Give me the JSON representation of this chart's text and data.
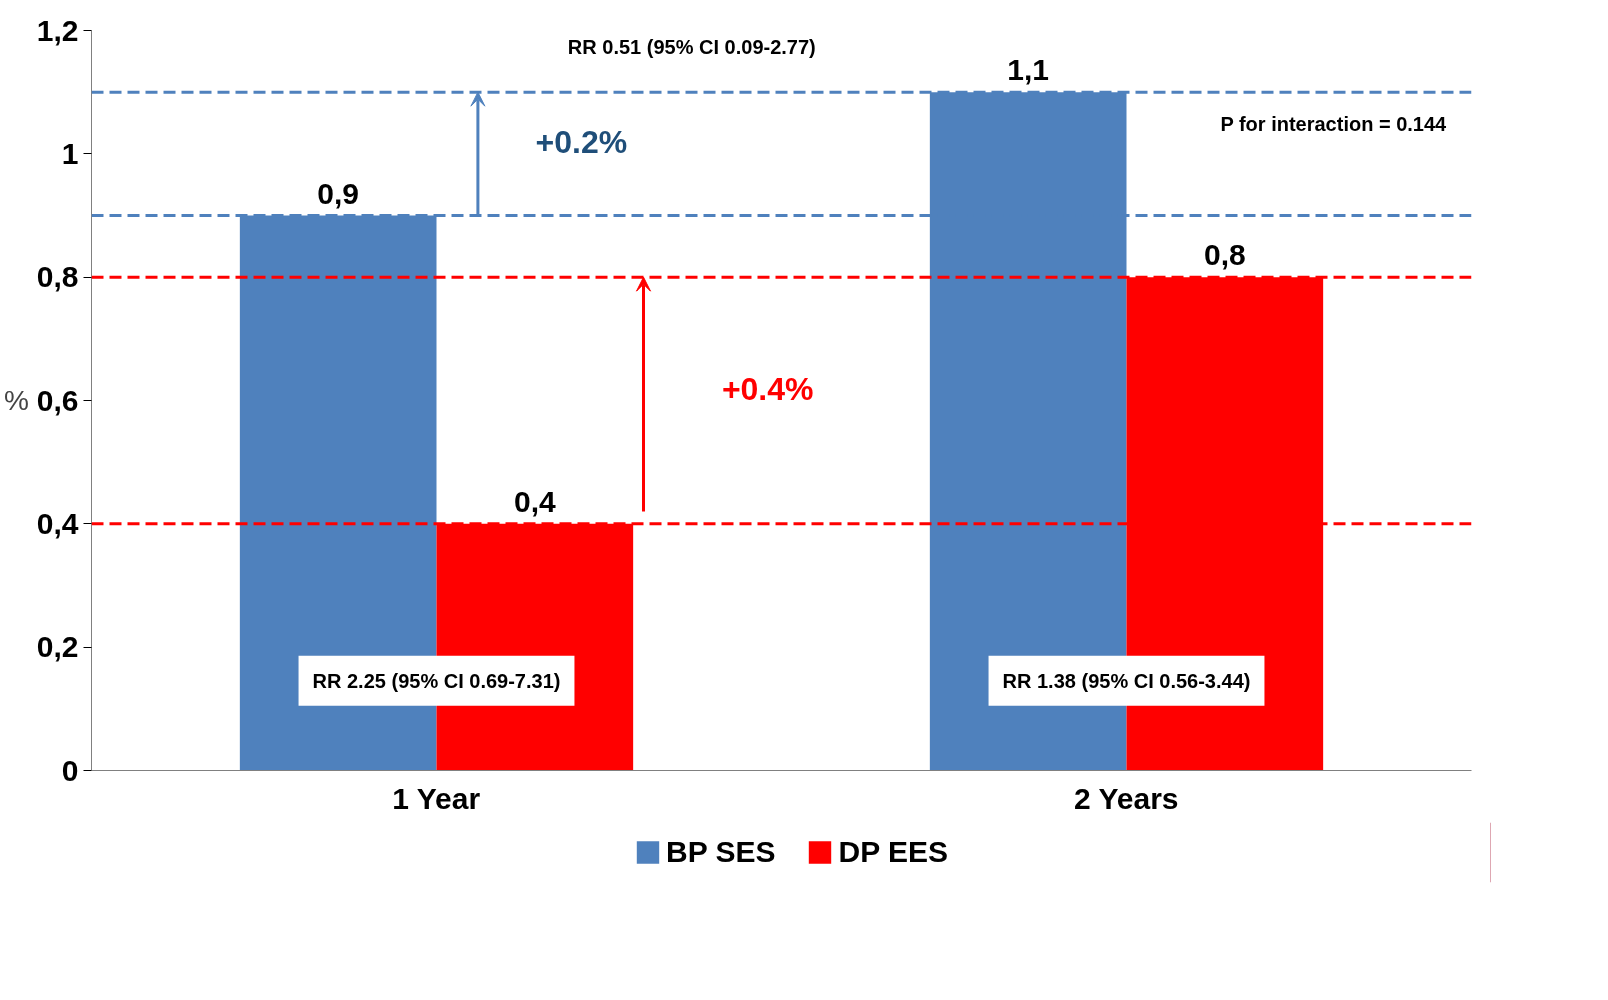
{
  "chart_data": {
    "type": "bar",
    "ylabel": "%",
    "categories": [
      "1 Year",
      "2 Years"
    ],
    "series": [
      {
        "name": "BP SES",
        "color": "#4f81bd",
        "values": [
          0.9,
          1.1
        ],
        "value_labels": [
          "0,9",
          "1,1"
        ]
      },
      {
        "name": "DP EES",
        "color": "#ff0000",
        "values": [
          0.4,
          0.8
        ],
        "value_labels": [
          "0,4",
          "0,8"
        ]
      }
    ],
    "ylim": [
      0,
      1.2
    ],
    "yticks": [
      {
        "value": 0,
        "label": "0"
      },
      {
        "value": 0.2,
        "label": "0,2"
      },
      {
        "value": 0.4,
        "label": "0,4"
      },
      {
        "value": 0.6,
        "label": "0,6"
      },
      {
        "value": 0.8,
        "label": "0,8"
      },
      {
        "value": 1,
        "label": "1"
      },
      {
        "value": 1.2,
        "label": "1,2"
      }
    ],
    "ref_lines": [
      {
        "axis": "y",
        "value": 1.1,
        "color": "#4f81bd",
        "line_style": "dashed"
      },
      {
        "axis": "y",
        "value": 0.9,
        "color": "#4f81bd",
        "line_style": "dashed"
      },
      {
        "axis": "y",
        "value": 0.8,
        "color": "#ff0000",
        "line_style": "dashed"
      },
      {
        "axis": "y",
        "value": 0.4,
        "color": "#ff0000",
        "line_style": "dashed"
      }
    ],
    "annotations": [
      "RR 0.51 (95% CI 0.09-2.77)",
      "+0.2%",
      "+0.4%",
      "P for interaction = 0.144",
      "RR 2.25 (95% CI 0.69-7.31)",
      "RR 1.38 (95% CI 0.56-3.44)"
    ],
    "grid": false,
    "legend": "bottom"
  }
}
